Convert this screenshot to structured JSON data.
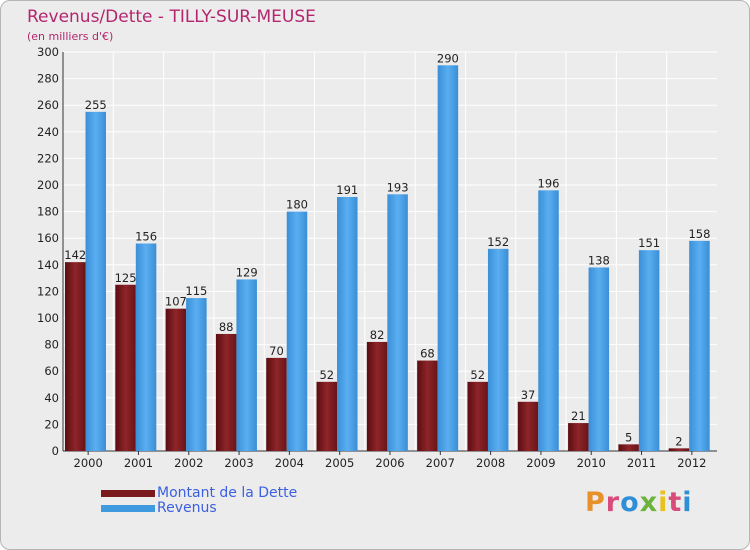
{
  "title": "Revenus/Dette - TILLY-SUR-MEUSE",
  "subtitle": "(en milliers d'€)",
  "colors": {
    "title": "#b3256d",
    "dette": "#7a1a1e",
    "revenus": "#3f9ae0",
    "legend_text": "#3b5fe0",
    "grid": "#ffffff",
    "background": "#ececec"
  },
  "chart_data": {
    "type": "bar",
    "title": "Revenus/Dette - TILLY-SUR-MEUSE",
    "subtitle": "(en milliers d'€)",
    "xlabel": "",
    "ylabel": "",
    "ylim": [
      0,
      300
    ],
    "yticks": [
      0,
      20,
      40,
      60,
      80,
      100,
      120,
      140,
      160,
      180,
      200,
      220,
      240,
      260,
      280,
      300
    ],
    "grid": true,
    "categories": [
      "2000",
      "2001",
      "2002",
      "2003",
      "2004",
      "2005",
      "2006",
      "2007",
      "2008",
      "2009",
      "2010",
      "2011",
      "2012"
    ],
    "series": [
      {
        "name": "Montant de la Dette",
        "values": [
          142,
          125,
          107,
          88,
          70,
          52,
          82,
          68,
          52,
          37,
          21,
          5,
          2
        ]
      },
      {
        "name": "Revenus",
        "values": [
          255,
          156,
          115,
          129,
          180,
          191,
          193,
          290,
          152,
          196,
          138,
          151,
          158
        ]
      }
    ],
    "legend_position": "bottom-left"
  },
  "legend": [
    {
      "label": "Montant de la Dette"
    },
    {
      "label": "Revenus"
    }
  ],
  "logo": {
    "letters": [
      "P",
      "r",
      "o",
      "x",
      "i",
      "t",
      "i"
    ],
    "letter_colors": [
      "#e8902a",
      "#d94b7a",
      "#2f8fd6",
      "#6bb33b",
      "#e8c21f",
      "#d94b7a",
      "#2f8fd6"
    ]
  }
}
